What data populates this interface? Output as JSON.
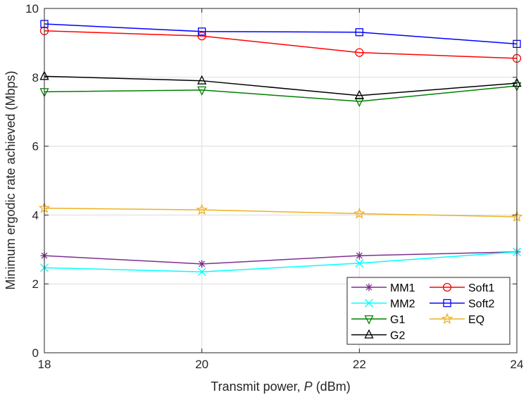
{
  "chart_data": {
    "type": "line",
    "title": "",
    "xlabel_prefix": "Transmit power, ",
    "xlabel_var": "P",
    "xlabel_suffix": " (dBm)",
    "ylabel": "Minimum ergodic rate achieved (Mbps)",
    "x": [
      18,
      20,
      22,
      24
    ],
    "xlim": [
      18,
      24
    ],
    "ylim": [
      0,
      10
    ],
    "xticks": [
      "18",
      "20",
      "22",
      "24"
    ],
    "yticks": [
      "0",
      "2",
      "4",
      "6",
      "8",
      "10"
    ],
    "grid": true,
    "legend_position": "bottom-right",
    "series": [
      {
        "name": "MM1",
        "color": "#7E2F8E",
        "marker": "asterisk",
        "values": [
          2.82,
          2.58,
          2.82,
          2.93
        ]
      },
      {
        "name": "Soft1",
        "color": "#FF0000",
        "marker": "circle",
        "values": [
          9.35,
          9.2,
          8.72,
          8.55
        ]
      },
      {
        "name": "MM2",
        "color": "#00FFFF",
        "marker": "x",
        "values": [
          2.47,
          2.35,
          2.6,
          2.93
        ]
      },
      {
        "name": "Soft2",
        "color": "#0000FF",
        "marker": "square",
        "values": [
          9.55,
          9.33,
          9.31,
          8.97
        ]
      },
      {
        "name": "G1",
        "color": "#008000",
        "marker": "triangle-down",
        "values": [
          7.58,
          7.63,
          7.3,
          7.75
        ]
      },
      {
        "name": "EQ",
        "color": "#EDB120",
        "marker": "star",
        "values": [
          4.2,
          4.15,
          4.04,
          3.95
        ]
      },
      {
        "name": "G2",
        "color": "#000000",
        "marker": "triangle-up",
        "values": [
          8.03,
          7.9,
          7.47,
          7.83
        ]
      }
    ]
  }
}
